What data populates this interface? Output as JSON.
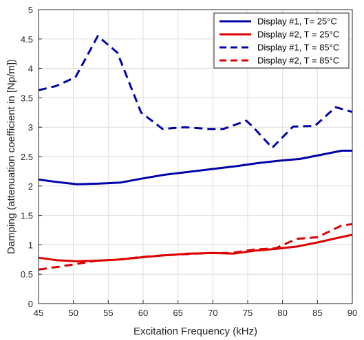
{
  "chart_data": {
    "type": "line",
    "title": "",
    "xlabel": "Excitation Frequency (kHz)",
    "ylabel": "Damping (attenuation coefficient in [Np/m])",
    "xlim": [
      45,
      90
    ],
    "ylim": [
      0,
      5
    ],
    "xticks": [
      "45",
      "50",
      "55",
      "60",
      "65",
      "70",
      "75",
      "80",
      "85",
      "90"
    ],
    "yticks": [
      "0",
      "0.5",
      "1",
      "1.5",
      "2",
      "2.5",
      "3",
      "3.5",
      "4",
      "4.5",
      "5"
    ],
    "grid": true,
    "legend_position": "top-right",
    "series": [
      {
        "name": "Display #1, T= 25°C",
        "color": "#0000aa",
        "dash": "solid",
        "x": [
          45,
          47.5,
          50.5,
          53.5,
          56.8,
          60,
          63,
          66.5,
          70,
          73.5,
          76.5,
          79.5,
          82.5,
          85.5,
          88.5,
          90
        ],
        "y": [
          2.11,
          2.07,
          2.03,
          2.04,
          2.06,
          2.13,
          2.19,
          2.24,
          2.29,
          2.34,
          2.39,
          2.43,
          2.46,
          2.53,
          2.6,
          2.6
        ]
      },
      {
        "name": "Display #2, T = 25°C",
        "color": "#dd0000",
        "dash": "solid",
        "x": [
          45,
          47.5,
          50.5,
          53.5,
          56.8,
          60,
          63,
          66.5,
          70,
          73,
          76,
          79,
          82,
          85,
          88,
          90
        ],
        "y": [
          0.78,
          0.74,
          0.72,
          0.73,
          0.75,
          0.79,
          0.82,
          0.85,
          0.86,
          0.85,
          0.9,
          0.93,
          0.97,
          1.04,
          1.12,
          1.17
        ]
      },
      {
        "name": "Display #1, T = 85°C",
        "color": "#0000aa",
        "dash": "dashed",
        "x": [
          45,
          47.5,
          50.3,
          53.5,
          56.3,
          59.7,
          62.8,
          66,
          69.5,
          71.5,
          74.8,
          75.8,
          78.5,
          81.5,
          84.6,
          87.6,
          90
        ],
        "y": [
          3.63,
          3.7,
          3.85,
          4.55,
          4.27,
          3.25,
          2.97,
          3.0,
          2.97,
          2.97,
          3.11,
          3.0,
          2.65,
          3.01,
          3.02,
          3.34,
          3.26
        ]
      },
      {
        "name": "Display #2, T = 85°C",
        "color": "#dd0000",
        "dash": "dashed",
        "x": [
          45,
          47.5,
          50.3,
          53.3,
          56.5,
          59.5,
          62.8,
          66,
          69.5,
          72.5,
          76,
          79,
          82,
          85,
          88.5,
          90
        ],
        "y": [
          0.58,
          0.62,
          0.67,
          0.73,
          0.75,
          0.79,
          0.82,
          0.84,
          0.86,
          0.86,
          0.92,
          0.94,
          1.1,
          1.13,
          1.33,
          1.35
        ]
      }
    ]
  }
}
